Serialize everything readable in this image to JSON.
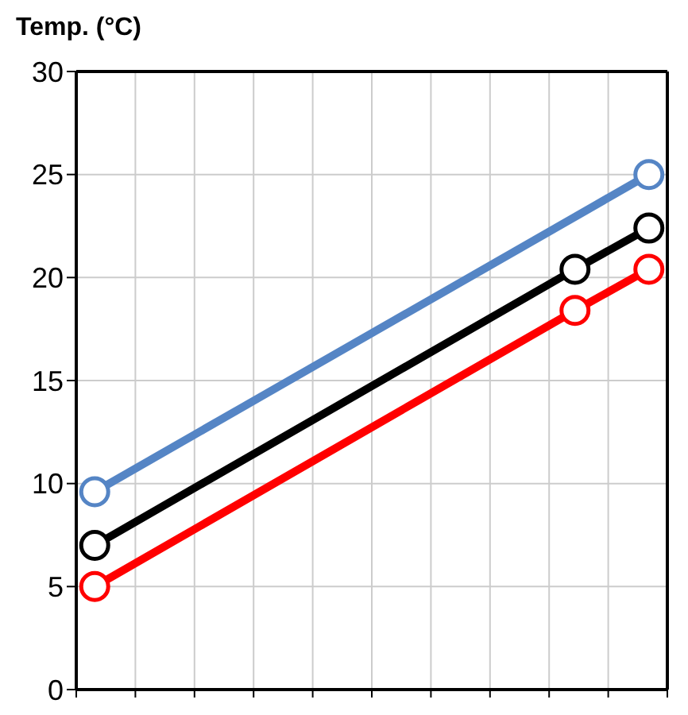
{
  "chart_data": {
    "type": "line",
    "ylabel": "Temp. (°C)",
    "categories": [
      null,
      null,
      null,
      null,
      null,
      null,
      null,
      null,
      null,
      null,
      null,
      null,
      null,
      null,
      null,
      null
    ],
    "ylim": [
      0,
      30
    ],
    "yticks": [
      0,
      5,
      10,
      15,
      20,
      25,
      30
    ],
    "grid": true,
    "tick_labels": "y",
    "marker": "circle",
    "line_style": "solid",
    "series": [
      {
        "color": "#5585c5",
        "values": [
          9.6,
          null,
          null,
          null,
          null,
          null,
          null,
          null,
          null,
          null,
          null,
          null,
          null,
          null,
          null,
          25
        ]
      },
      {
        "color": "#000000",
        "values": [
          7,
          null,
          null,
          null,
          null,
          null,
          null,
          null,
          null,
          null,
          null,
          null,
          null,
          20.4,
          null,
          22.4
        ]
      },
      {
        "color": "#ff0000",
        "values": [
          5,
          null,
          null,
          null,
          null,
          null,
          null,
          null,
          null,
          null,
          null,
          null,
          null,
          18.4,
          null,
          20.4
        ]
      }
    ]
  }
}
